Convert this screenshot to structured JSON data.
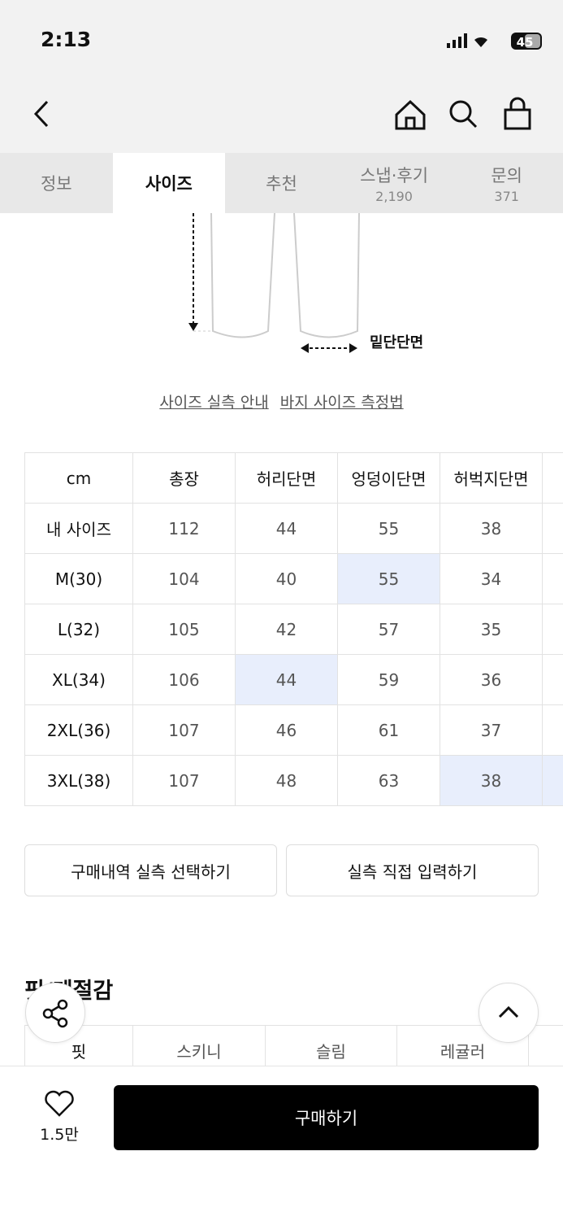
{
  "status_bar": {
    "time": "2:13",
    "battery": "45"
  },
  "tabs": [
    {
      "label": "정보"
    },
    {
      "label": "사이즈"
    },
    {
      "label": "추천"
    },
    {
      "label": "스냅·후기",
      "count": "2,190"
    },
    {
      "label": "문의",
      "count": "371"
    }
  ],
  "diagram": {
    "hem_label": "밑단단면"
  },
  "links": [
    "사이즈 실측 안내",
    "바지 사이즈 측정법"
  ],
  "size_table": {
    "header": [
      "cm",
      "총장",
      "허리단면",
      "엉덩이단면",
      "허벅지단면"
    ],
    "rows": [
      [
        "내 사이즈",
        112,
        44,
        55,
        38
      ],
      [
        "M(30)",
        104,
        40,
        55,
        34
      ],
      [
        "L(32)",
        105,
        42,
        57,
        35
      ],
      [
        "XL(34)",
        106,
        44,
        59,
        36
      ],
      [
        "2XL(36)",
        107,
        46,
        61,
        37
      ],
      [
        "3XL(38)",
        107,
        48,
        63,
        38
      ]
    ]
  },
  "buttons": [
    "구매내역 실측 선택하기",
    "실측 직접 입력하기"
  ],
  "fit_section": {
    "title": "핏/계절감",
    "row": [
      "핏",
      "스키니",
      "슬림",
      "레귤러"
    ]
  },
  "bottom_bar": {
    "likes": "1.5만",
    "buy": "구매하기"
  }
}
